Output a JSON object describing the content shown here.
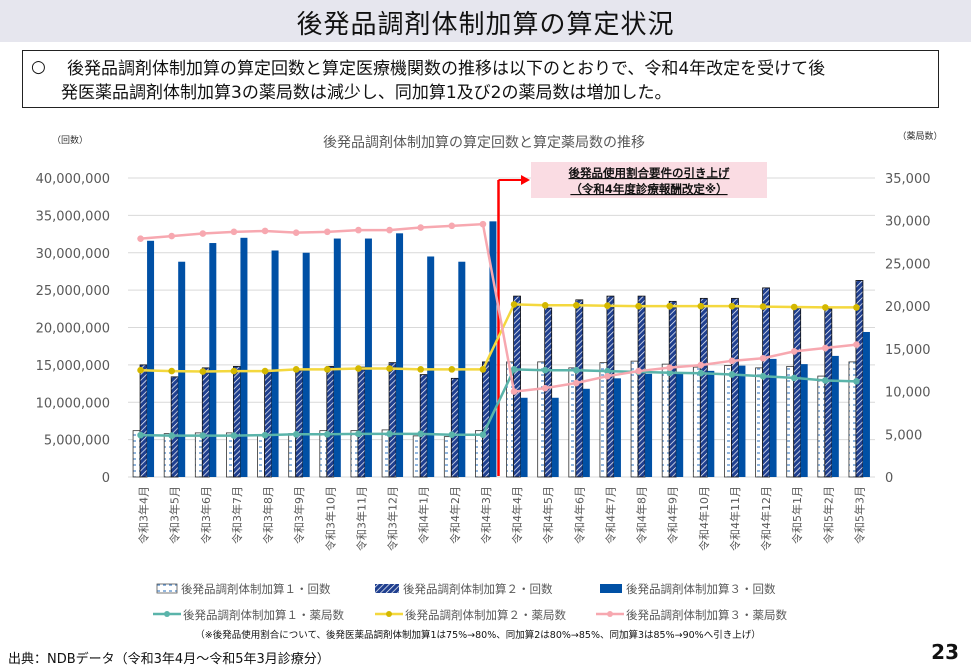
{
  "page": {
    "title": "後発品調剤体制加算の算定状況",
    "summary_bullet": "○",
    "summary_line1": "後発品調剤体制加算の算定回数と算定医療機関数の推移は以下のとおりで、令和4年改定を受けて後",
    "summary_line2": "発医薬品調剤体制加算3の薬局数は減少し、同加算1及び2の薬局数は増加した。",
    "source": "出典：NDBデータ（令和3年4月～令和5年3月診療分）",
    "page_number": "23"
  },
  "colors": {
    "bar1_fill": "#ffffff",
    "bar1_stripe": "#4a86c8",
    "bar2_fill": "#1f3f8f",
    "bar3_fill": "#0050a5",
    "line1": "#5ab4aa",
    "line2": "#f4d83e",
    "line2_marker": "#d4b800",
    "line3": "#f7a8b0",
    "divider": "#ff0000",
    "annotation_bg": "#fadce3",
    "grid": "#d9d9d9"
  },
  "chart_data": {
    "type": "bar",
    "title": "後発品調剤体制加算の算定回数と算定薬局数の推移",
    "ylabel_left": "（回数）",
    "ylabel_right": "（薬局数）",
    "ylim_left": [
      0,
      40000000
    ],
    "ylim_right": [
      0,
      35000
    ],
    "yticks_left": [
      "0",
      "5,000,000",
      "10,000,000",
      "15,000,000",
      "20,000,000",
      "25,000,000",
      "30,000,000",
      "35,000,000",
      "40,000,000"
    ],
    "yticks_right": [
      "0",
      "5,000",
      "10,000",
      "15,000",
      "20,000",
      "25,000",
      "30,000",
      "35,000"
    ],
    "grid": true,
    "categories": [
      "令和3年4月",
      "令和3年5月",
      "令和3年6月",
      "令和3年7月",
      "令和3年8月",
      "令和3年9月",
      "令和3年10月",
      "令和3年11月",
      "令和3年12月",
      "令和4年1月",
      "令和4年2月",
      "令和4年3月",
      "令和4年4月",
      "令和4年5月",
      "令和4年6月",
      "令和4年7月",
      "令和4年8月",
      "令和4年9月",
      "令和4年10月",
      "令和4年11月",
      "令和4年12月",
      "令和5年1月",
      "令和5年2月",
      "令和5年3月"
    ],
    "bar_series": [
      {
        "name": "後発品調剤体制加算１・回数",
        "axis": "left",
        "values": [
          6200000,
          5800000,
          5900000,
          5900000,
          5500000,
          5800000,
          6200000,
          6200000,
          6300000,
          5500000,
          5400000,
          6200000,
          15400000,
          15400000,
          14600000,
          15300000,
          15500000,
          15100000,
          14700000,
          14900000,
          14600000,
          14800000,
          13500000,
          15400000
        ]
      },
      {
        "name": "後発品調剤体制加算２・回数",
        "axis": "left",
        "values": [
          15000000,
          13400000,
          14600000,
          14800000,
          14300000,
          14400000,
          14800000,
          14700000,
          15300000,
          13700000,
          13200000,
          15400000,
          24200000,
          22600000,
          23700000,
          24200000,
          24200000,
          23500000,
          23900000,
          23900000,
          25300000,
          22800000,
          22500000,
          26300000
        ]
      },
      {
        "name": "後発品調剤体制加算３・回数",
        "axis": "left",
        "values": [
          31600000,
          28800000,
          31300000,
          32000000,
          30300000,
          30000000,
          31900000,
          31900000,
          32600000,
          29500000,
          28800000,
          34200000,
          10600000,
          10600000,
          11800000,
          13200000,
          13800000,
          13800000,
          14200000,
          14900000,
          15800000,
          15100000,
          16200000,
          19400000
        ]
      }
    ],
    "line_series": [
      {
        "name": "後発品調剤体制加算１・薬局数",
        "axis": "right",
        "values": [
          4900,
          4850,
          4850,
          4850,
          4900,
          5000,
          5000,
          5050,
          5050,
          5050,
          4950,
          4950,
          12600,
          12500,
          12500,
          12400,
          12300,
          12200,
          12150,
          12000,
          11800,
          11600,
          11300,
          11200
        ]
      },
      {
        "name": "後発品調剤体制加算２・薬局数",
        "axis": "right",
        "values": [
          12500,
          12400,
          12350,
          12400,
          12400,
          12600,
          12600,
          12700,
          12700,
          12600,
          12600,
          12600,
          20200,
          20100,
          20100,
          20050,
          20000,
          20000,
          20000,
          20000,
          19950,
          19900,
          19850,
          19850
        ]
      },
      {
        "name": "後発品調剤体制加算３・薬局数",
        "axis": "right",
        "values": [
          27900,
          28200,
          28500,
          28700,
          28800,
          28600,
          28700,
          28900,
          28900,
          29200,
          29400,
          29600,
          10000,
          10400,
          11000,
          11800,
          12400,
          12800,
          13100,
          13600,
          13900,
          14700,
          15100,
          15500
        ]
      }
    ],
    "divider_after_index": 11,
    "annotation_line1": "後発品使用割合要件の引き上げ",
    "annotation_line2": "（令和4年度診療報酬改定※）",
    "legend_placement": "bottom",
    "footnote": "（※後発品使用割合について、後発医薬品調剤体制加算1は75%→80%、同加算2は80%→85%、同加算3は85%→90%へ引き上げ）"
  }
}
